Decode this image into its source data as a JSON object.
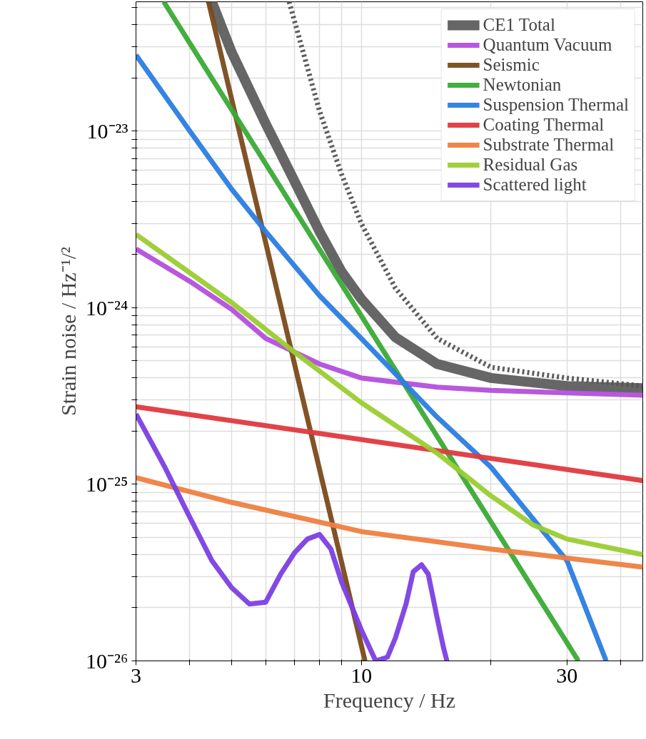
{
  "chart_data": {
    "type": "line",
    "xlabel": "Frequency / Hz",
    "ylabel": "Strain noise / Hz⁻¹/²",
    "log": "xy",
    "grid": true,
    "legend": "top right",
    "xlim": [
      3,
      45
    ],
    "ylim": [
      1e-26,
      5.4e-23
    ],
    "xticks": [
      3,
      {
        "value": 4,
        "label": null
      },
      {
        "value": 5,
        "label": null
      },
      {
        "value": 6,
        "label": null
      },
      {
        "value": 7,
        "label": null
      },
      {
        "value": 8,
        "label": null
      },
      {
        "value": 9,
        "label": null
      },
      10,
      {
        "value": 20,
        "label": null
      },
      30,
      {
        "value": 40,
        "label": null
      }
    ],
    "yticks": [
      {
        "value": 1e-26,
        "label": "10⁻²⁶"
      },
      {
        "value": 2e-26,
        "label": null
      },
      {
        "value": 3e-26,
        "label": null
      },
      {
        "value": 4e-26,
        "label": null
      },
      {
        "value": 5e-26,
        "label": null
      },
      {
        "value": 6e-26,
        "label": null
      },
      {
        "value": 7e-26,
        "label": null
      },
      {
        "value": 8e-26,
        "label": null
      },
      {
        "value": 9e-26,
        "label": null
      },
      {
        "value": 1e-25,
        "label": "10⁻²⁵"
      },
      {
        "value": 2e-25,
        "label": null
      },
      {
        "value": 3e-25,
        "label": null
      },
      {
        "value": 4e-25,
        "label": null
      },
      {
        "value": 5e-25,
        "label": null
      },
      {
        "value": 6e-25,
        "label": null
      },
      {
        "value": 7e-25,
        "label": null
      },
      {
        "value": 8e-25,
        "label": null
      },
      {
        "value": 9e-25,
        "label": null
      },
      {
        "value": 1e-24,
        "label": "10⁻²⁴"
      },
      {
        "value": 2e-24,
        "label": null
      },
      {
        "value": 3e-24,
        "label": null
      },
      {
        "value": 4e-24,
        "label": null
      },
      {
        "value": 5e-24,
        "label": null
      },
      {
        "value": 6e-24,
        "label": null
      },
      {
        "value": 7e-24,
        "label": null
      },
      {
        "value": 8e-24,
        "label": null
      },
      {
        "value": 9e-24,
        "label": null
      },
      {
        "value": 1e-23,
        "label": "10⁻²³"
      },
      {
        "value": 2e-23,
        "label": null
      },
      {
        "value": 3e-23,
        "label": null
      },
      {
        "value": 4e-23,
        "label": null
      },
      {
        "value": 5e-23,
        "label": null
      }
    ],
    "series": [
      {
        "name": "CE1 Total",
        "color": "#555555",
        "x": [
          4.5,
          5,
          6,
          7,
          8,
          9,
          10,
          12,
          15,
          20,
          30,
          45
        ],
        "values": [
          5.4e-23,
          2.8e-23,
          1.1e-23,
          5.2e-24,
          2.7e-24,
          1.6e-24,
          1.12e-24,
          6.8e-25,
          4.8e-25,
          4e-25,
          3.6e-25,
          3.5e-25
        ]
      },
      {
        "name": "Quantum Vacuum",
        "color": "#b44fdc",
        "x": [
          3,
          4,
          5,
          6,
          7,
          8,
          10,
          15,
          20,
          45
        ],
        "values": [
          2.15e-24,
          1.41e-24,
          9.8e-25,
          6.7e-25,
          5.6e-25,
          4.8e-25,
          4e-25,
          3.55e-25,
          3.4e-25,
          3.2e-25
        ]
      },
      {
        "name": "Seismic",
        "color": "#7a4a1a",
        "x": [
          4.42,
          10.2
        ],
        "values": [
          5.4e-23,
          1e-26
        ]
      },
      {
        "name": "Newtonian",
        "color": "#3aaa35",
        "x": [
          3.48,
          31.9
        ],
        "values": [
          5.4e-23,
          1e-26
        ]
      },
      {
        "name": "Suspension Thermal",
        "color": "#2a7de1",
        "x": [
          3,
          4,
          5,
          6,
          8,
          10,
          15,
          20,
          30,
          37
        ],
        "values": [
          2.7e-23,
          1e-23,
          4.7e-24,
          2.7e-24,
          1.17e-24,
          6.7e-25,
          2.4e-25,
          1.25e-25,
          3.7e-26,
          1e-26
        ]
      },
      {
        "name": "Coating Thermal",
        "color": "#e0393e",
        "x": [
          3,
          45
        ],
        "values": [
          2.75e-25,
          1.05e-25
        ]
      },
      {
        "name": "Substrate Thermal",
        "color": "#ee8040",
        "x": [
          3,
          5,
          10,
          20,
          45
        ],
        "values": [
          1.09e-25,
          7.9e-26,
          5.4e-26,
          4.3e-26,
          3.4e-26
        ]
      },
      {
        "name": "Residual Gas",
        "color": "#9acd32",
        "x": [
          3,
          5,
          7,
          10,
          15,
          20,
          25,
          30,
          45
        ],
        "values": [
          2.6e-24,
          1.07e-24,
          5.6e-25,
          2.9e-25,
          1.5e-25,
          8.6e-26,
          5.9e-26,
          4.9e-26,
          4e-26
        ]
      },
      {
        "name": "Scattered light",
        "color": "#7b3fe4",
        "x": [
          3,
          3.5,
          4,
          4.5,
          5,
          5.5,
          6,
          6.5,
          7,
          7.5,
          8,
          8.5,
          9,
          10,
          10.8,
          11.5,
          12,
          12.7,
          13.2,
          13.8,
          14.3,
          15,
          15.5,
          15.8
        ],
        "values": [
          2.5e-25,
          1.25e-25,
          6.5e-26,
          3.7e-26,
          2.6e-26,
          2.1e-26,
          2.15e-26,
          3.1e-26,
          4.1e-26,
          4.9e-26,
          5.2e-26,
          4.3e-26,
          2.8e-26,
          1.5e-26,
          1e-26,
          1.05e-26,
          1.35e-26,
          2.1e-26,
          3.2e-26,
          3.5e-26,
          3.1e-26,
          1.75e-26,
          1.2e-26,
          1e-26
        ]
      },
      {
        "color": "#555555",
        "line_style": "dotted",
        "x": [
          6.8,
          8,
          9,
          10,
          12,
          15,
          20,
          30,
          45
        ],
        "values": [
          5.4e-23,
          1.3e-23,
          5.7e-24,
          3e-24,
          1.29e-24,
          6.7e-25,
          4.6e-25,
          4e-25,
          3.6e-25
        ]
      }
    ]
  }
}
